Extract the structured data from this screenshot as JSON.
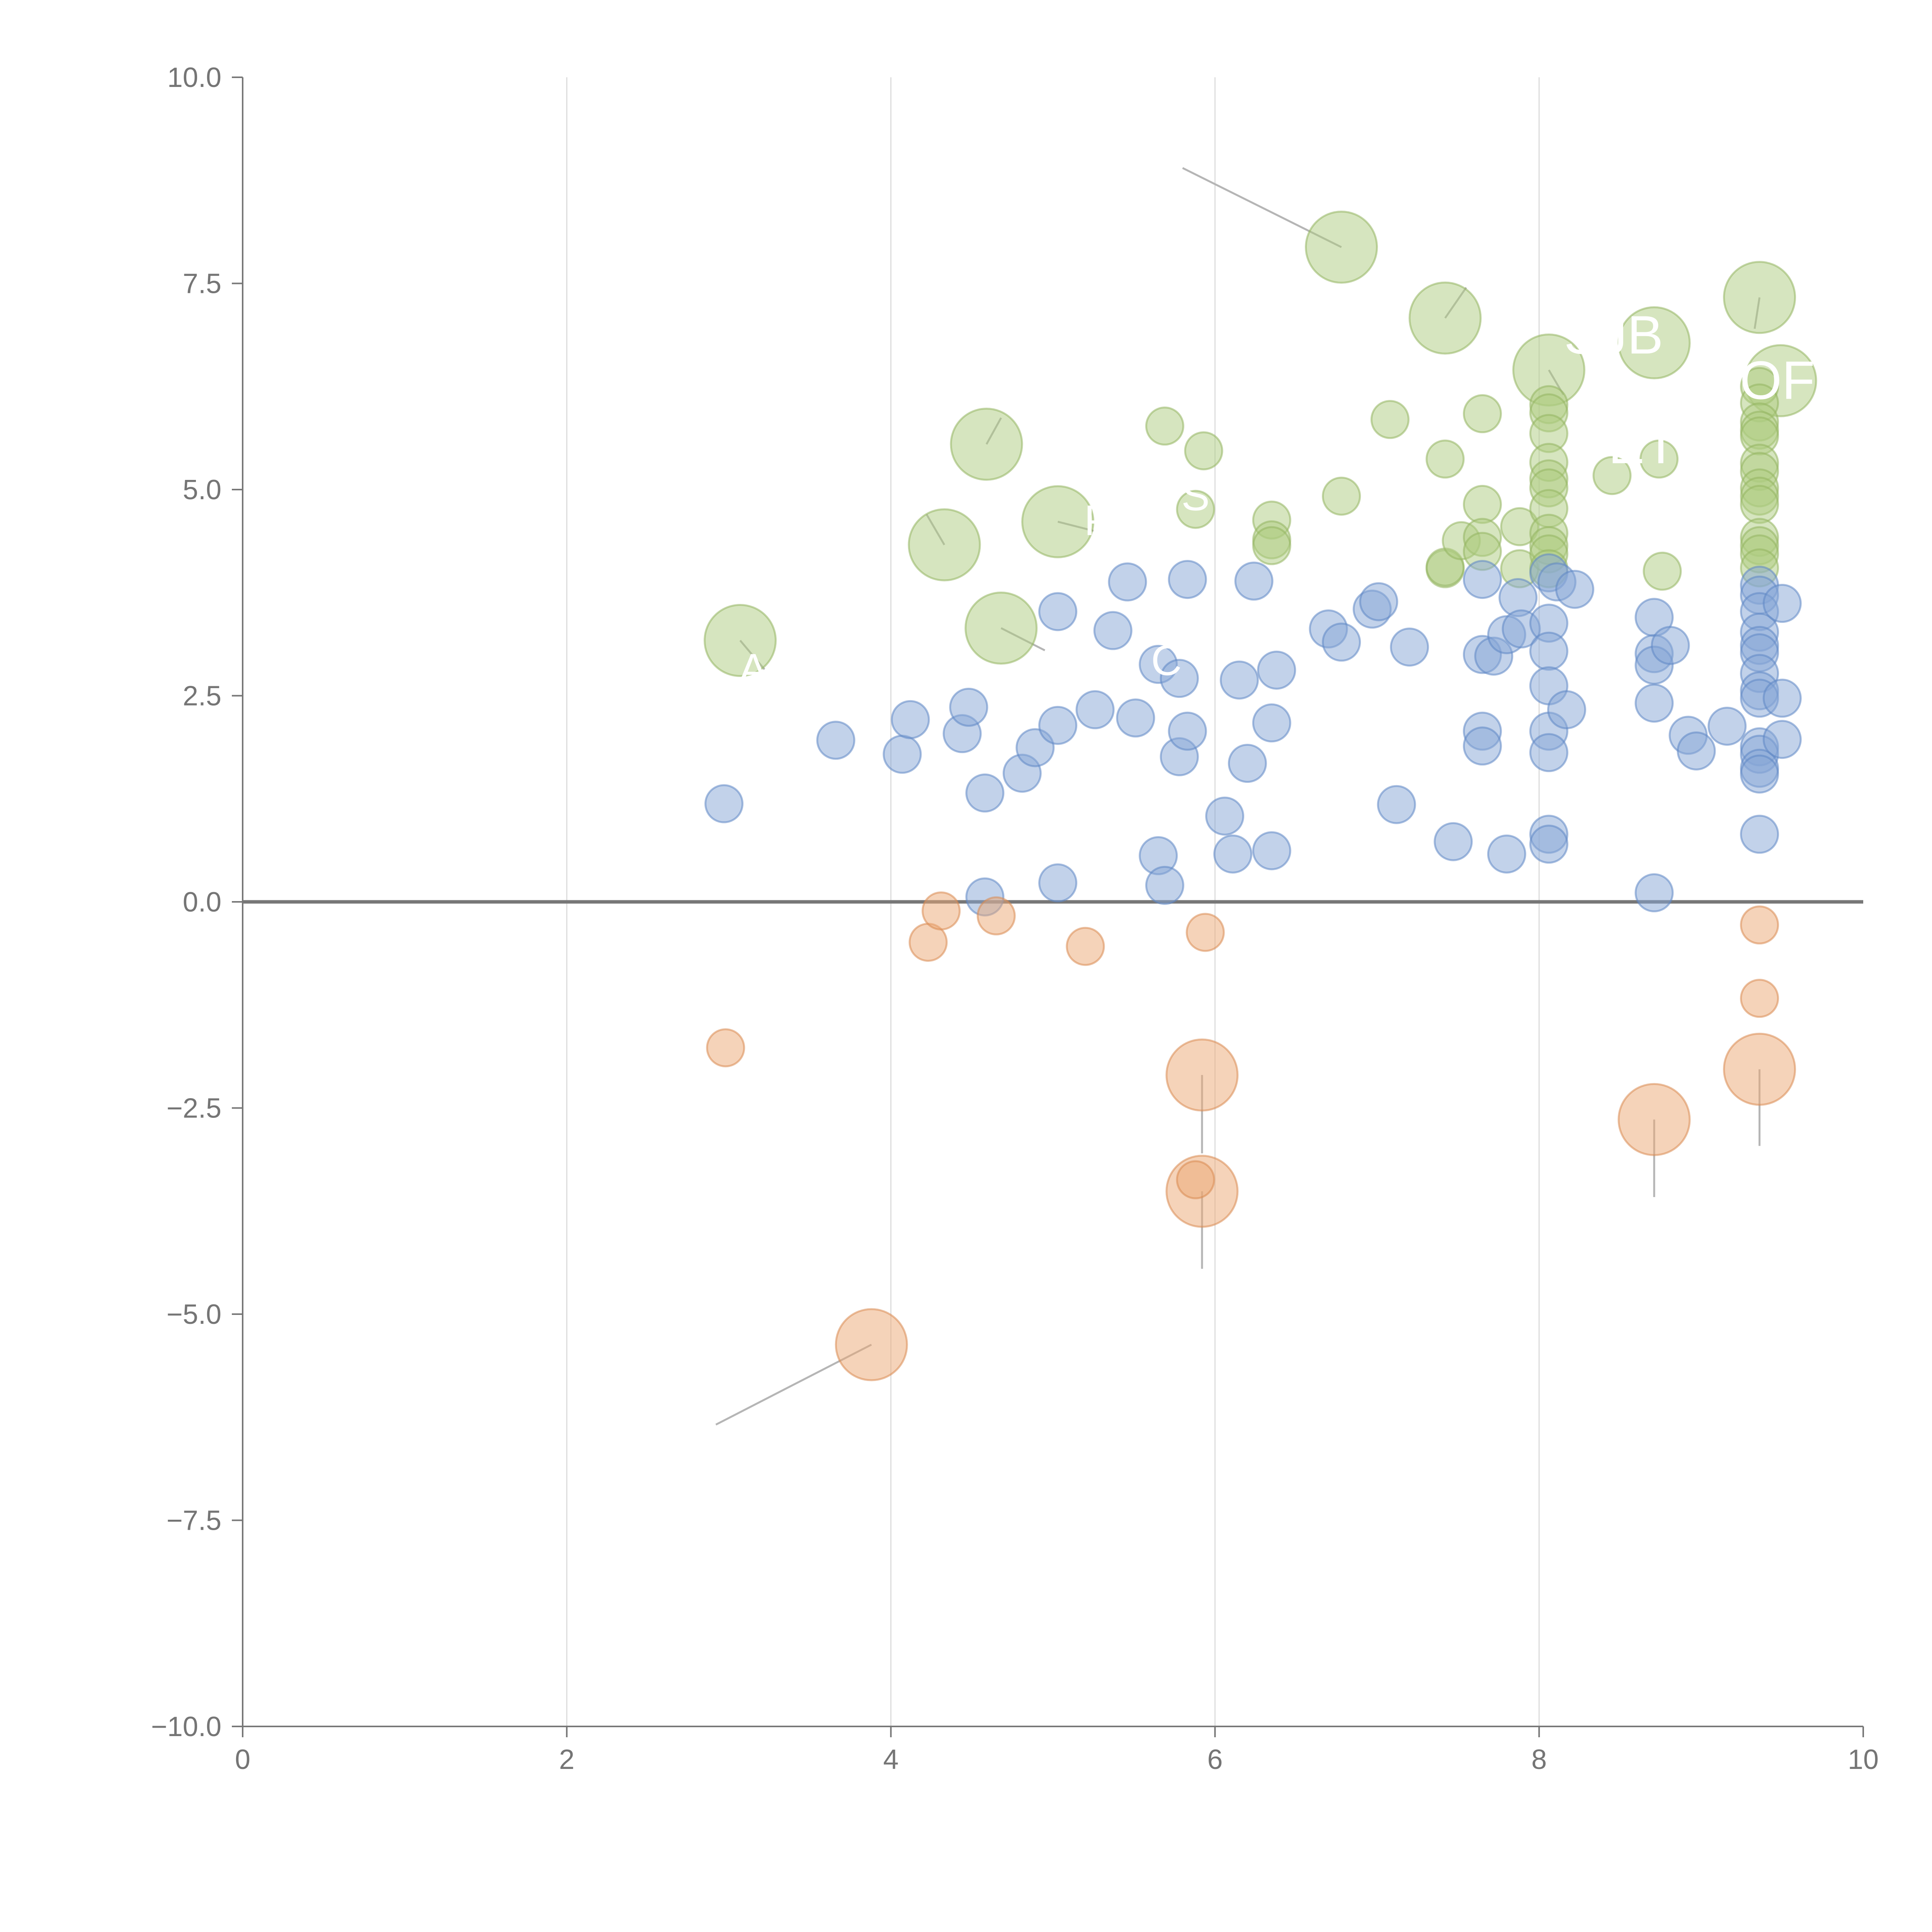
{
  "chart_data": {
    "type": "scatter",
    "subtype": "bubble",
    "title": "",
    "xlabel": "",
    "ylabel": "",
    "xlim": [
      0,
      10
    ],
    "ylim": [
      -10,
      10
    ],
    "x_ticks": [
      0,
      2,
      4,
      6,
      8,
      10
    ],
    "y_ticks": [
      -10,
      -7.5,
      -5,
      -2.5,
      0,
      2.5,
      5,
      7.5,
      10
    ],
    "x_tick_labels": [
      "0",
      "2",
      "4",
      "6",
      "8",
      "10"
    ],
    "y_tick_labels": [
      "−10.0",
      "−7.5",
      "−5.0",
      "−2.5",
      "0.0",
      "2.5",
      "5.0",
      "7.5",
      "10.0"
    ],
    "grid": "vertical",
    "reference_line_y": 0,
    "colors": {
      "green": "#aecb80",
      "green_stroke": "#93b561",
      "blue": "#86a6d6",
      "blue_stroke": "#5f87c4",
      "orange": "#eca874",
      "orange_stroke": "#d98a52",
      "leader": "#b5b5b5",
      "axis": "#777777",
      "grid": "#dcdcdc",
      "tick_text": "#757575"
    },
    "series": [
      {
        "name": "green",
        "color": "#aecb80",
        "points": [
          {
            "x": 3.07,
            "y": 3.17,
            "size": 3
          },
          {
            "x": 4.33,
            "y": 4.33,
            "size": 3
          },
          {
            "x": 4.59,
            "y": 5.55,
            "size": 3
          },
          {
            "x": 4.68,
            "y": 3.32,
            "size": 3
          },
          {
            "x": 5.03,
            "y": 4.61,
            "size": 3
          },
          {
            "x": 6.78,
            "y": 7.94,
            "size": 3
          },
          {
            "x": 7.42,
            "y": 7.08,
            "size": 3
          },
          {
            "x": 8.06,
            "y": 6.45,
            "size": 3
          },
          {
            "x": 8.71,
            "y": 6.78,
            "size": 3
          },
          {
            "x": 9.36,
            "y": 7.33,
            "size": 3
          },
          {
            "x": 9.49,
            "y": 6.32,
            "size": 3
          },
          {
            "x": 5.69,
            "y": 5.77,
            "size": 1
          },
          {
            "x": 5.93,
            "y": 5.47,
            "size": 1
          },
          {
            "x": 5.88,
            "y": 4.76,
            "size": 1
          },
          {
            "x": 6.35,
            "y": 4.63,
            "size": 1
          },
          {
            "x": 6.35,
            "y": 4.39,
            "size": 1
          },
          {
            "x": 6.35,
            "y": 4.32,
            "size": 1
          },
          {
            "x": 6.78,
            "y": 4.92,
            "size": 1
          },
          {
            "x": 7.08,
            "y": 5.85,
            "size": 1
          },
          {
            "x": 7.42,
            "y": 5.37,
            "size": 1
          },
          {
            "x": 7.42,
            "y": 4.04,
            "size": 1
          },
          {
            "x": 7.42,
            "y": 4.06,
            "size": 1
          },
          {
            "x": 7.52,
            "y": 4.38,
            "size": 1
          },
          {
            "x": 7.65,
            "y": 5.92,
            "size": 1
          },
          {
            "x": 7.65,
            "y": 4.82,
            "size": 1
          },
          {
            "x": 7.65,
            "y": 4.42,
            "size": 1
          },
          {
            "x": 7.65,
            "y": 4.25,
            "size": 1
          },
          {
            "x": 7.88,
            "y": 4.55,
            "size": 1
          },
          {
            "x": 7.88,
            "y": 4.04,
            "size": 1
          },
          {
            "x": 8.06,
            "y": 6.03,
            "size": 1
          },
          {
            "x": 8.06,
            "y": 5.93,
            "size": 1
          },
          {
            "x": 8.06,
            "y": 5.68,
            "size": 1
          },
          {
            "x": 8.06,
            "y": 5.33,
            "size": 1
          },
          {
            "x": 8.06,
            "y": 5.13,
            "size": 1
          },
          {
            "x": 8.06,
            "y": 5.02,
            "size": 1
          },
          {
            "x": 8.06,
            "y": 4.77,
            "size": 1
          },
          {
            "x": 8.06,
            "y": 4.47,
            "size": 1
          },
          {
            "x": 8.06,
            "y": 4.32,
            "size": 1
          },
          {
            "x": 8.06,
            "y": 4.22,
            "size": 1
          },
          {
            "x": 8.06,
            "y": 4.04,
            "size": 1
          },
          {
            "x": 8.45,
            "y": 5.17,
            "size": 1
          },
          {
            "x": 8.74,
            "y": 5.37,
            "size": 1
          },
          {
            "x": 8.76,
            "y": 4.01,
            "size": 1
          },
          {
            "x": 9.36,
            "y": 6.25,
            "size": 1
          },
          {
            "x": 9.36,
            "y": 6.05,
            "size": 1
          },
          {
            "x": 9.36,
            "y": 5.82,
            "size": 1
          },
          {
            "x": 9.36,
            "y": 5.72,
            "size": 1
          },
          {
            "x": 9.36,
            "y": 5.65,
            "size": 1
          },
          {
            "x": 9.36,
            "y": 5.32,
            "size": 1
          },
          {
            "x": 9.36,
            "y": 5.22,
            "size": 1
          },
          {
            "x": 9.36,
            "y": 5.02,
            "size": 1
          },
          {
            "x": 9.36,
            "y": 4.92,
            "size": 1
          },
          {
            "x": 9.36,
            "y": 4.82,
            "size": 1
          },
          {
            "x": 9.36,
            "y": 4.42,
            "size": 1
          },
          {
            "x": 9.36,
            "y": 4.32,
            "size": 1
          },
          {
            "x": 9.36,
            "y": 4.22,
            "size": 1
          },
          {
            "x": 9.36,
            "y": 4.05,
            "size": 1
          }
        ]
      },
      {
        "name": "blue",
        "color": "#86a6d6",
        "points": [
          {
            "x": 2.97,
            "y": 1.19,
            "size": 1
          },
          {
            "x": 3.66,
            "y": 1.96,
            "size": 1
          },
          {
            "x": 4.07,
            "y": 1.79,
            "size": 1
          },
          {
            "x": 4.12,
            "y": 2.21,
            "size": 1
          },
          {
            "x": 4.44,
            "y": 2.04,
            "size": 1
          },
          {
            "x": 4.48,
            "y": 2.36,
            "size": 1
          },
          {
            "x": 4.58,
            "y": 1.32,
            "size": 1
          },
          {
            "x": 4.58,
            "y": 0.06,
            "size": 1
          },
          {
            "x": 4.81,
            "y": 1.56,
            "size": 1
          },
          {
            "x": 4.89,
            "y": 1.87,
            "size": 1
          },
          {
            "x": 5.03,
            "y": 3.52,
            "size": 1
          },
          {
            "x": 5.03,
            "y": 2.14,
            "size": 1
          },
          {
            "x": 5.03,
            "y": 0.23,
            "size": 1
          },
          {
            "x": 5.26,
            "y": 2.33,
            "size": 1
          },
          {
            "x": 5.37,
            "y": 3.29,
            "size": 1
          },
          {
            "x": 5.46,
            "y": 3.88,
            "size": 1
          },
          {
            "x": 5.51,
            "y": 2.23,
            "size": 1
          },
          {
            "x": 5.65,
            "y": 2.88,
            "size": 1
          },
          {
            "x": 5.65,
            "y": 0.56,
            "size": 1
          },
          {
            "x": 5.69,
            "y": 0.2,
            "size": 1
          },
          {
            "x": 5.78,
            "y": 2.71,
            "size": 1
          },
          {
            "x": 5.78,
            "y": 1.76,
            "size": 1
          },
          {
            "x": 5.83,
            "y": 3.91,
            "size": 1
          },
          {
            "x": 5.83,
            "y": 2.07,
            "size": 1
          },
          {
            "x": 6.06,
            "y": 1.04,
            "size": 1
          },
          {
            "x": 6.11,
            "y": 0.58,
            "size": 1
          },
          {
            "x": 6.15,
            "y": 2.69,
            "size": 1
          },
          {
            "x": 6.2,
            "y": 1.68,
            "size": 1
          },
          {
            "x": 6.24,
            "y": 3.89,
            "size": 1
          },
          {
            "x": 6.35,
            "y": 2.17,
            "size": 1
          },
          {
            "x": 6.35,
            "y": 0.62,
            "size": 1
          },
          {
            "x": 6.38,
            "y": 2.81,
            "size": 1
          },
          {
            "x": 6.7,
            "y": 3.31,
            "size": 1
          },
          {
            "x": 6.78,
            "y": 3.15,
            "size": 1
          },
          {
            "x": 6.97,
            "y": 3.55,
            "size": 1
          },
          {
            "x": 7.01,
            "y": 3.64,
            "size": 1
          },
          {
            "x": 7.12,
            "y": 1.18,
            "size": 1
          },
          {
            "x": 7.2,
            "y": 3.09,
            "size": 1
          },
          {
            "x": 7.47,
            "y": 0.73,
            "size": 1
          },
          {
            "x": 7.65,
            "y": 3.91,
            "size": 1
          },
          {
            "x": 7.65,
            "y": 3.0,
            "size": 1
          },
          {
            "x": 7.65,
            "y": 2.07,
            "size": 1
          },
          {
            "x": 7.65,
            "y": 1.89,
            "size": 1
          },
          {
            "x": 7.72,
            "y": 2.98,
            "size": 1
          },
          {
            "x": 7.8,
            "y": 3.24,
            "size": 1
          },
          {
            "x": 7.8,
            "y": 0.58,
            "size": 1
          },
          {
            "x": 7.87,
            "y": 3.69,
            "size": 1
          },
          {
            "x": 7.89,
            "y": 3.31,
            "size": 1
          },
          {
            "x": 8.06,
            "y": 3.99,
            "size": 1
          },
          {
            "x": 8.06,
            "y": 3.38,
            "size": 1
          },
          {
            "x": 8.06,
            "y": 3.04,
            "size": 1
          },
          {
            "x": 8.06,
            "y": 2.62,
            "size": 1
          },
          {
            "x": 8.06,
            "y": 2.07,
            "size": 1
          },
          {
            "x": 8.06,
            "y": 1.81,
            "size": 1
          },
          {
            "x": 8.06,
            "y": 0.82,
            "size": 1
          },
          {
            "x": 8.06,
            "y": 0.7,
            "size": 1
          },
          {
            "x": 8.11,
            "y": 3.88,
            "size": 1
          },
          {
            "x": 8.17,
            "y": 2.33,
            "size": 1
          },
          {
            "x": 8.22,
            "y": 3.79,
            "size": 1
          },
          {
            "x": 8.71,
            "y": 3.45,
            "size": 1
          },
          {
            "x": 8.71,
            "y": 3.01,
            "size": 1
          },
          {
            "x": 8.71,
            "y": 2.87,
            "size": 1
          },
          {
            "x": 8.71,
            "y": 2.41,
            "size": 1
          },
          {
            "x": 8.71,
            "y": 0.11,
            "size": 1
          },
          {
            "x": 8.81,
            "y": 3.11,
            "size": 1
          },
          {
            "x": 8.92,
            "y": 2.02,
            "size": 1
          },
          {
            "x": 8.97,
            "y": 1.83,
            "size": 1
          },
          {
            "x": 9.16,
            "y": 2.13,
            "size": 1
          },
          {
            "x": 9.36,
            "y": 3.84,
            "size": 1
          },
          {
            "x": 9.36,
            "y": 3.72,
            "size": 1
          },
          {
            "x": 9.36,
            "y": 3.52,
            "size": 1
          },
          {
            "x": 9.36,
            "y": 3.27,
            "size": 1
          },
          {
            "x": 9.36,
            "y": 3.11,
            "size": 1
          },
          {
            "x": 9.36,
            "y": 3.02,
            "size": 1
          },
          {
            "x": 9.36,
            "y": 2.77,
            "size": 1
          },
          {
            "x": 9.36,
            "y": 2.56,
            "size": 1
          },
          {
            "x": 9.36,
            "y": 2.47,
            "size": 1
          },
          {
            "x": 9.36,
            "y": 1.88,
            "size": 1
          },
          {
            "x": 9.36,
            "y": 1.79,
            "size": 1
          },
          {
            "x": 9.36,
            "y": 1.62,
            "size": 1
          },
          {
            "x": 9.36,
            "y": 1.55,
            "size": 1
          },
          {
            "x": 9.36,
            "y": 0.82,
            "size": 1
          },
          {
            "x": 9.5,
            "y": 3.62,
            "size": 1
          },
          {
            "x": 9.5,
            "y": 2.47,
            "size": 1
          },
          {
            "x": 9.5,
            "y": 1.97,
            "size": 1
          }
        ]
      },
      {
        "name": "orange",
        "color": "#eca874",
        "points": [
          {
            "x": 3.88,
            "y": -5.37,
            "size": 3
          },
          {
            "x": 5.92,
            "y": -2.1,
            "size": 3
          },
          {
            "x": 5.92,
            "y": -3.51,
            "size": 3
          },
          {
            "x": 8.71,
            "y": -2.64,
            "size": 3
          },
          {
            "x": 9.36,
            "y": -2.03,
            "size": 3
          },
          {
            "x": 2.98,
            "y": -1.77,
            "size": 1
          },
          {
            "x": 4.23,
            "y": -0.49,
            "size": 1
          },
          {
            "x": 4.31,
            "y": -0.11,
            "size": 1
          },
          {
            "x": 4.65,
            "y": -0.17,
            "size": 1
          },
          {
            "x": 5.2,
            "y": -0.54,
            "size": 1
          },
          {
            "x": 5.94,
            "y": -0.37,
            "size": 1
          },
          {
            "x": 5.88,
            "y": -3.37,
            "size": 1
          },
          {
            "x": 9.36,
            "y": -0.28,
            "size": 1
          },
          {
            "x": 9.36,
            "y": -1.17,
            "size": 1
          }
        ]
      }
    ],
    "annotations": [
      {
        "text": "SJB",
        "x": 8.06,
        "y": 6.45,
        "label_x": 8.46,
        "label_y": 6.65
      },
      {
        "text": "OF",
        "x": 9.49,
        "y": 6.32,
        "label_x": 9.47,
        "label_y": 6.1
      },
      {
        "text": "ET",
        "x": 8.71,
        "y": 6.78,
        "label_x": 8.64,
        "label_y": 5.32
      },
      {
        "text": "S",
        "x": 5.03,
        "y": 4.61,
        "label_x": 5.88,
        "label_y": 4.75
      },
      {
        "text": "P",
        "x": 4.33,
        "y": 4.33,
        "label_x": 5.28,
        "label_y": 4.45
      },
      {
        "text": "C",
        "x": 4.68,
        "y": 3.32,
        "label_x": 5.7,
        "label_y": 2.75
      },
      {
        "text": "A",
        "x": 3.07,
        "y": 3.17,
        "label_x": 3.15,
        "label_y": 2.65
      }
    ],
    "leaders": [
      {
        "from_x": 6.78,
        "from_y": 7.94,
        "to_x": 5.8,
        "to_y": 8.9
      },
      {
        "from_x": 7.42,
        "from_y": 7.08,
        "to_x": 7.55,
        "to_y": 7.45
      },
      {
        "from_x": 9.36,
        "from_y": 7.33,
        "to_x": 9.33,
        "to_y": 6.95
      },
      {
        "from_x": 8.06,
        "from_y": 6.45,
        "to_x": 8.15,
        "to_y": 6.15
      },
      {
        "from_x": 4.59,
        "from_y": 5.55,
        "to_x": 4.68,
        "to_y": 5.87
      },
      {
        "from_x": 4.33,
        "from_y": 4.33,
        "to_x": 4.22,
        "to_y": 4.7
      },
      {
        "from_x": 5.03,
        "from_y": 4.61,
        "to_x": 5.25,
        "to_y": 4.5
      },
      {
        "from_x": 4.68,
        "from_y": 3.32,
        "to_x": 4.95,
        "to_y": 3.05
      },
      {
        "from_x": 3.07,
        "from_y": 3.17,
        "to_x": 3.22,
        "to_y": 2.82
      },
      {
        "from_x": 5.92,
        "from_y": -2.1,
        "to_x": 5.92,
        "to_y": -3.05
      },
      {
        "from_x": 5.92,
        "from_y": -3.51,
        "to_x": 5.92,
        "to_y": -4.45
      },
      {
        "from_x": 8.71,
        "from_y": -2.64,
        "to_x": 8.71,
        "to_y": -3.58
      },
      {
        "from_x": 9.36,
        "from_y": -2.03,
        "to_x": 9.36,
        "to_y": -2.96
      },
      {
        "from_x": 3.88,
        "from_y": -5.37,
        "to_x": 2.92,
        "to_y": -6.34
      }
    ]
  }
}
